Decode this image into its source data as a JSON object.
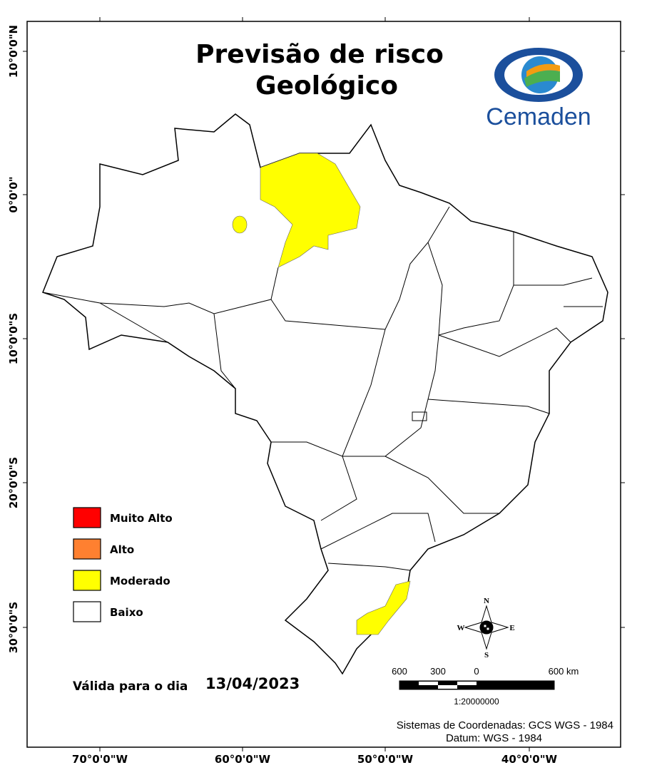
{
  "title_lines": [
    "Previsão de risco",
    "Geológico"
  ],
  "logo_text": "Cemaden",
  "legend": [
    {
      "label": "Muito Alto",
      "color": "#ff0000"
    },
    {
      "label": "Alto",
      "color": "#ff8030"
    },
    {
      "label": "Moderado",
      "color": "#ffff00"
    },
    {
      "label": "Baixo",
      "color": "#ffffff"
    }
  ],
  "validity": {
    "label": "Válida para o dia",
    "date": "13/04/2023"
  },
  "scale": {
    "labels": [
      "600",
      "300",
      "0",
      "600 km"
    ],
    "ratio": "1:20000000"
  },
  "compass": {
    "north": "N",
    "south": "S",
    "east": "E",
    "west": "W"
  },
  "credits": [
    "Sistemas de Coordenadas: GCS WGS - 1984",
    "Datum: WGS - 1984"
  ],
  "longitude_labels": [
    "70°0'0\"W",
    "60°0'0\"W",
    "50°0'0\"W",
    "40°0'0\"W"
  ],
  "latitude_labels": [
    "10°0'0\"N",
    "0°0'0\"",
    "10°0'0\"S",
    "20°0'0\"S",
    "30°0'0\"S"
  ]
}
